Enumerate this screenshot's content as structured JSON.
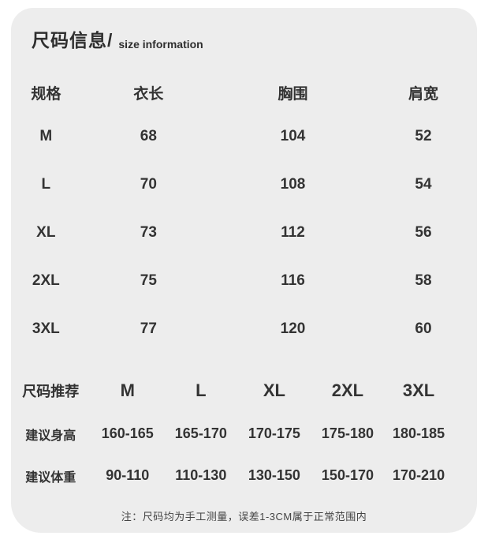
{
  "header": {
    "title_zh": "尺码信息/",
    "title_en": "size information"
  },
  "size_table": {
    "headers": [
      "规格",
      "衣长",
      "胸围",
      "肩宽"
    ],
    "rows": [
      {
        "size": "M",
        "length": "68",
        "chest": "104",
        "shoulder": "52"
      },
      {
        "size": "L",
        "length": "70",
        "chest": "108",
        "shoulder": "54"
      },
      {
        "size": "XL",
        "length": "73",
        "chest": "112",
        "shoulder": "56"
      },
      {
        "size": "2XL",
        "length": "75",
        "chest": "116",
        "shoulder": "58"
      },
      {
        "size": "3XL",
        "length": "77",
        "chest": "120",
        "shoulder": "60"
      }
    ]
  },
  "recommendation": {
    "size_label": "尺码推荐",
    "sizes": [
      "M",
      "L",
      "XL",
      "2XL",
      "3XL"
    ],
    "height_label": "建议身高",
    "heights": [
      "160-165",
      "165-170",
      "170-175",
      "175-180",
      "180-185"
    ],
    "weight_label": "建议体重",
    "weights": [
      "90-110",
      "110-130",
      "130-150",
      "150-170",
      "170-210"
    ]
  },
  "note": "注：尺码均为手工测量，误差1-3CM属于正常范围内",
  "colors": {
    "page_bg": "#ffffff",
    "card_bg": "#ededed",
    "text": "#333333"
  }
}
